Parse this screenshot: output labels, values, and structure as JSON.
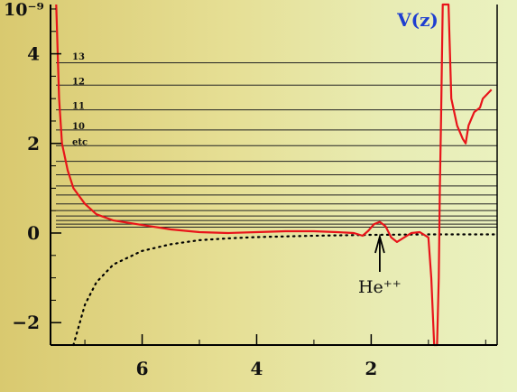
{
  "chart_data": {
    "type": "line",
    "title": "V(z)",
    "y_exponent_label": "10⁻⁹",
    "x_axis": {
      "range": [
        7.6,
        -0.2
      ],
      "ticks": [
        6,
        4,
        2
      ],
      "tick_labels": [
        "6",
        "4",
        "2"
      ]
    },
    "y_axis": {
      "range": [
        -2.5,
        5.1
      ],
      "ticks": [
        4,
        2,
        0,
        -2
      ],
      "tick_labels": [
        "4",
        "2",
        "0",
        "−2"
      ]
    },
    "levels": [
      3.8,
      3.3,
      2.75,
      2.3,
      1.95,
      1.6,
      1.3,
      1.05,
      0.85,
      0.65,
      0.5,
      0.38,
      0.28,
      0.2,
      0.13
    ],
    "level_labels": [
      {
        "text": "13",
        "y": 3.95
      },
      {
        "text": "12",
        "y": 3.4
      },
      {
        "text": "11",
        "y": 2.85
      },
      {
        "text": "10",
        "y": 2.4
      },
      {
        "text": "etc",
        "y": 2.05
      }
    ],
    "series": [
      {
        "color": "#e8141a",
        "style": "solid",
        "points": [
          [
            7.5,
            5.1
          ],
          [
            7.45,
            3.0
          ],
          [
            7.4,
            2.0
          ],
          [
            7.3,
            1.4
          ],
          [
            7.2,
            1.0
          ],
          [
            7.0,
            0.65
          ],
          [
            6.8,
            0.42
          ],
          [
            6.5,
            0.28
          ],
          [
            6.0,
            0.18
          ],
          [
            5.5,
            0.08
          ],
          [
            5.0,
            0.02
          ],
          [
            4.5,
            0.0
          ],
          [
            4.0,
            0.02
          ],
          [
            3.5,
            0.04
          ],
          [
            3.0,
            0.04
          ],
          [
            2.6,
            0.02
          ],
          [
            2.3,
            0.0
          ],
          [
            2.15,
            -0.06
          ],
          [
            2.05,
            0.05
          ],
          [
            1.95,
            0.2
          ],
          [
            1.85,
            0.25
          ],
          [
            1.75,
            0.15
          ],
          [
            1.65,
            -0.1
          ],
          [
            1.55,
            -0.2
          ],
          [
            1.45,
            -0.12
          ],
          [
            1.3,
            0.0
          ],
          [
            1.15,
            0.02
          ],
          [
            1.0,
            -0.1
          ],
          [
            0.95,
            -1.0
          ],
          [
            0.9,
            -2.5
          ],
          [
            0.85,
            -2.5
          ],
          [
            0.82,
            -1.0
          ],
          [
            0.8,
            1.0
          ],
          [
            0.78,
            2.5
          ],
          [
            0.75,
            5.1
          ],
          [
            0.65,
            5.1
          ],
          [
            0.6,
            3.0
          ],
          [
            0.5,
            2.4
          ],
          [
            0.4,
            2.1
          ],
          [
            0.35,
            2.0
          ],
          [
            0.3,
            2.4
          ],
          [
            0.2,
            2.7
          ],
          [
            0.1,
            2.8
          ],
          [
            0.05,
            3.0
          ],
          [
            -0.1,
            3.2
          ]
        ]
      },
      {
        "color": "#000000",
        "style": "dotted",
        "points": [
          [
            7.2,
            -2.5
          ],
          [
            7.0,
            -1.6
          ],
          [
            6.8,
            -1.1
          ],
          [
            6.5,
            -0.7
          ],
          [
            6.0,
            -0.4
          ],
          [
            5.5,
            -0.25
          ],
          [
            5.0,
            -0.16
          ],
          [
            4.5,
            -0.12
          ],
          [
            4.0,
            -0.09
          ],
          [
            3.0,
            -0.06
          ],
          [
            2.0,
            -0.04
          ],
          [
            1.0,
            -0.03
          ],
          [
            0.5,
            -0.03
          ],
          [
            0.0,
            -0.03
          ],
          [
            -0.2,
            -0.03
          ]
        ]
      }
    ],
    "annotation": {
      "text": "He⁺⁺",
      "x": 1.85,
      "y": 0.0
    },
    "grid": false
  }
}
